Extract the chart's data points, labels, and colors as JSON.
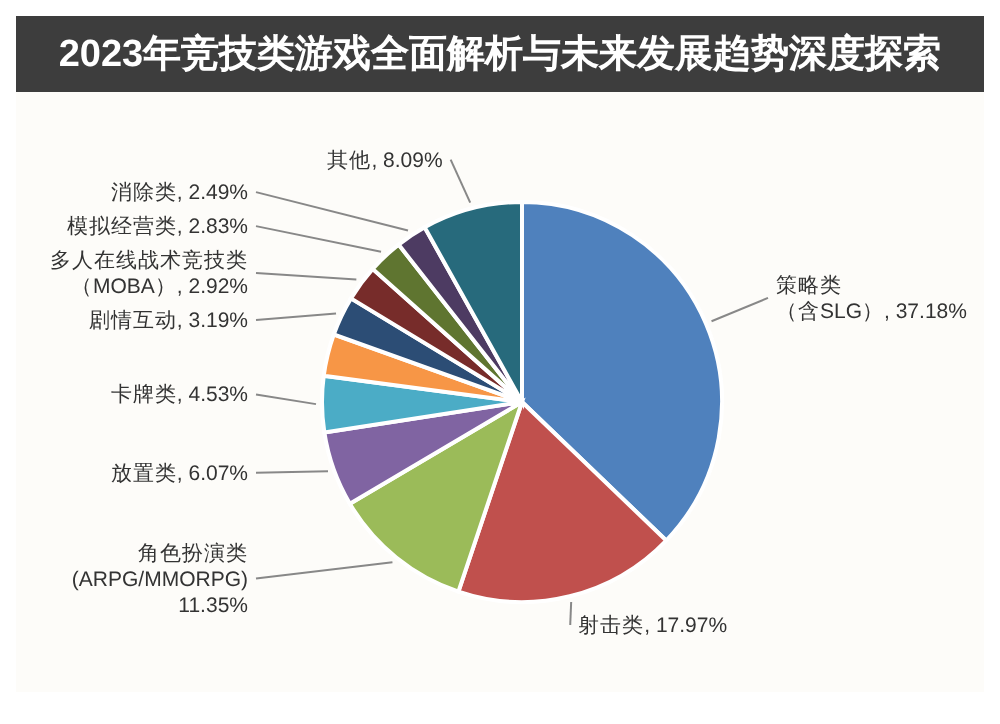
{
  "chart_data": {
    "type": "pie",
    "title": "2023年竞技类游戏全面解析与未来发展趋势深度探索",
    "categories": [
      "策略类（含SLG）",
      "射击类",
      "角色扮演类(ARPG/MMORPG)",
      "放置类",
      "卡牌类",
      null,
      "剧情互动",
      "多人在线战术竞技类（MOBA）",
      "模拟经营类",
      "消除类",
      "其他"
    ],
    "values": [
      37.18,
      17.97,
      11.35,
      6.07,
      4.53,
      3.38,
      3.19,
      2.92,
      2.83,
      2.49,
      8.09
    ],
    "value_labels": [
      "37.18%",
      "17.97%",
      "11.35%",
      "6.07%",
      "4.53%",
      null,
      "3.19%",
      "2.92%",
      "2.83%",
      "2.49%",
      "8.09%"
    ],
    "colors": [
      "#4f81bd",
      "#c0504d",
      "#9bbb59",
      "#8064a2",
      "#4bacc6",
      "#f79646",
      "#2c4d75",
      "#772c2a",
      "#5f7530",
      "#4d3b62",
      "#276a7c"
    ]
  }
}
